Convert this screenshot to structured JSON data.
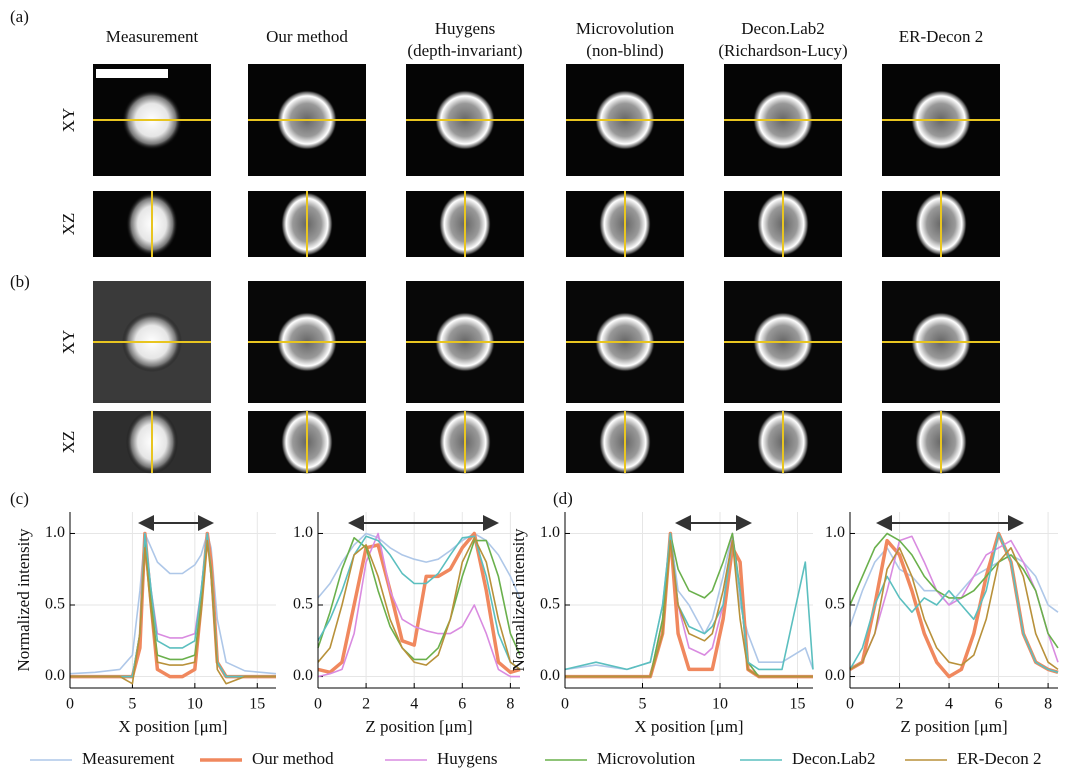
{
  "figure": {
    "panels": [
      "(a)",
      "(b)",
      "(c)",
      "(d)"
    ],
    "columns": [
      [
        "Measurement"
      ],
      [
        "Our method"
      ],
      [
        "Huygens",
        "(depth-invariant)"
      ],
      [
        "Microvolution",
        "(non-blind)"
      ],
      [
        "Decon.Lab2",
        "(Richardson-Lucy)"
      ],
      [
        "ER-Decon 2"
      ]
    ],
    "rows": [
      "XY",
      "XZ"
    ]
  },
  "chart_data": [
    {
      "type": "line",
      "xlabel": "X position [μm]",
      "ylabel": "Normalized intensity",
      "x": [
        0,
        2,
        4,
        5,
        5.6,
        6,
        6.5,
        7,
        8,
        9,
        10,
        10.5,
        11,
        11.3,
        11.8,
        12.5,
        14,
        16.5
      ],
      "xlim": [
        0,
        16.5
      ],
      "xticks": [
        0,
        5,
        10,
        15
      ],
      "ylim": [
        -0.08,
        1.15
      ],
      "yticks": [
        {
          "value": 0,
          "label": "0.0"
        },
        {
          "value": 0.5,
          "label": "0.5"
        },
        {
          "value": 1,
          "label": "1.0"
        }
      ],
      "grid": true,
      "series": [
        {
          "name": "Measurement",
          "color": "#aec7e8",
          "linewidth": 1.6,
          "values": [
            0.02,
            0.03,
            0.05,
            0.15,
            0.6,
            1.0,
            0.9,
            0.8,
            0.72,
            0.72,
            0.78,
            0.85,
            1.0,
            0.9,
            0.4,
            0.1,
            0.04,
            0.02
          ]
        },
        {
          "name": "Our method",
          "color": "#f0885e",
          "linewidth": 3.5,
          "values": [
            0,
            0,
            0,
            0,
            0.2,
            1.0,
            0.5,
            0.05,
            0,
            0,
            0.05,
            0.5,
            1.0,
            0.8,
            0.1,
            0,
            0,
            0
          ]
        },
        {
          "name": "Huygens",
          "color": "#d98be0",
          "linewidth": 1.6,
          "values": [
            0,
            0,
            0,
            0,
            0.3,
            1.0,
            0.6,
            0.3,
            0.27,
            0.27,
            0.3,
            0.6,
            1.0,
            0.7,
            0.1,
            0,
            0,
            0
          ]
        },
        {
          "name": "Microvolution",
          "color": "#6ab04c",
          "linewidth": 1.6,
          "values": [
            0,
            0,
            0,
            0,
            0.3,
            0.95,
            0.5,
            0.15,
            0.12,
            0.12,
            0.15,
            0.5,
            0.95,
            0.75,
            0.1,
            0,
            0,
            0
          ]
        },
        {
          "name": "Decon.Lab2",
          "color": "#5bbfbf",
          "linewidth": 1.6,
          "values": [
            0,
            0,
            0,
            0,
            0.3,
            1.0,
            0.6,
            0.25,
            0.2,
            0.2,
            0.25,
            0.6,
            1.0,
            0.7,
            0.1,
            0,
            0,
            0
          ]
        },
        {
          "name": "ER-Decon 2",
          "color": "#b8913a",
          "linewidth": 1.6,
          "values": [
            0,
            0,
            0,
            -0.05,
            0.3,
            0.9,
            0.45,
            0.1,
            0.08,
            0.08,
            0.1,
            0.45,
            0.95,
            0.7,
            0.05,
            -0.05,
            0,
            0
          ]
        }
      ]
    },
    {
      "type": "line",
      "xlabel": "Z position [μm]",
      "x": [
        0,
        0.5,
        1,
        1.5,
        2,
        2.5,
        3,
        3.5,
        4,
        4.5,
        5,
        5.5,
        6,
        6.5,
        7,
        7.5,
        8,
        8.4
      ],
      "xlim": [
        0,
        8.4
      ],
      "xticks": [
        0,
        2,
        4,
        6,
        8
      ],
      "ylim": [
        -0.08,
        1.15
      ],
      "yticks": [
        {
          "value": 0,
          "label": "0.0"
        },
        {
          "value": 0.5,
          "label": "0.5"
        },
        {
          "value": 1,
          "label": "1.0"
        }
      ],
      "grid": true,
      "series": [
        {
          "name": "Measurement",
          "color": "#aec7e8",
          "linewidth": 1.6,
          "values": [
            0.55,
            0.65,
            0.8,
            0.92,
            1.0,
            0.97,
            0.9,
            0.85,
            0.82,
            0.8,
            0.82,
            0.88,
            0.95,
            1.0,
            0.95,
            0.85,
            0.7,
            0.55
          ]
        },
        {
          "name": "Our method",
          "color": "#f0885e",
          "linewidth": 3.5,
          "values": [
            0.05,
            0.03,
            0.1,
            0.5,
            0.9,
            0.92,
            0.6,
            0.25,
            0.22,
            0.7,
            0.7,
            0.75,
            0.9,
            1.0,
            0.6,
            0.1,
            0.03,
            0.05
          ]
        },
        {
          "name": "Huygens",
          "color": "#d98be0",
          "linewidth": 1.6,
          "values": [
            0,
            0.02,
            0.05,
            0.3,
            0.8,
            1.0,
            0.6,
            0.4,
            0.35,
            0.32,
            0.3,
            0.3,
            0.35,
            0.5,
            0.3,
            0.05,
            0,
            0
          ]
        },
        {
          "name": "Microvolution",
          "color": "#6ab04c",
          "linewidth": 1.6,
          "values": [
            0.2,
            0.45,
            0.75,
            0.97,
            0.9,
            0.6,
            0.35,
            0.2,
            0.12,
            0.12,
            0.2,
            0.4,
            0.7,
            0.95,
            0.95,
            0.7,
            0.3,
            0.15
          ]
        },
        {
          "name": "Decon.Lab2",
          "color": "#5bbfbf",
          "linewidth": 1.6,
          "values": [
            0.25,
            0.4,
            0.6,
            0.85,
            0.98,
            0.95,
            0.85,
            0.72,
            0.65,
            0.65,
            0.72,
            0.85,
            0.97,
            0.98,
            0.7,
            0.3,
            0.1,
            0.05
          ]
        },
        {
          "name": "ER-Decon 2",
          "color": "#b8913a",
          "linewidth": 1.6,
          "values": [
            0.1,
            0.2,
            0.5,
            0.85,
            0.92,
            0.7,
            0.4,
            0.2,
            0.1,
            0.08,
            0.15,
            0.4,
            0.8,
            0.97,
            0.8,
            0.4,
            0.1,
            0.05
          ]
        }
      ]
    },
    {
      "type": "line",
      "xlabel": "X position [μm]",
      "ylabel": "Normalized intensity",
      "x": [
        0,
        2,
        4,
        5.5,
        6.3,
        6.8,
        7.3,
        8,
        9,
        9.5,
        10.2,
        10.8,
        11.3,
        11.8,
        12.5,
        14,
        15.5,
        16
      ],
      "xlim": [
        0,
        16
      ],
      "xticks": [
        0,
        5,
        10,
        15
      ],
      "ylim": [
        -0.08,
        1.15
      ],
      "yticks": [
        {
          "value": 0,
          "label": "0.0"
        },
        {
          "value": 0.5,
          "label": "0.5"
        },
        {
          "value": 1,
          "label": "1.0"
        }
      ],
      "grid": true,
      "series": [
        {
          "name": "Measurement",
          "color": "#aec7e8",
          "linewidth": 1.6,
          "values": [
            0.05,
            0.08,
            0.05,
            0.1,
            0.5,
            1.0,
            0.6,
            0.5,
            0.3,
            0.4,
            0.7,
            1.0,
            0.5,
            0.3,
            0.1,
            0.1,
            0.2,
            0.05
          ]
        },
        {
          "name": "Our method",
          "color": "#f0885e",
          "linewidth": 3.5,
          "values": [
            0,
            0,
            0,
            0,
            0.3,
            1.0,
            0.3,
            0.05,
            0.05,
            0.05,
            0.4,
            0.9,
            0.8,
            0.05,
            0,
            0,
            0,
            0
          ]
        },
        {
          "name": "Huygens",
          "color": "#d98be0",
          "linewidth": 1.6,
          "values": [
            0,
            0,
            0,
            0,
            0.4,
            1.0,
            0.5,
            0.2,
            0.15,
            0.2,
            0.5,
            1.0,
            0.6,
            0.1,
            0,
            0,
            0,
            0
          ]
        },
        {
          "name": "Microvolution",
          "color": "#6ab04c",
          "linewidth": 1.6,
          "values": [
            0,
            0,
            0,
            0,
            0.4,
            1.0,
            0.75,
            0.6,
            0.55,
            0.6,
            0.8,
            1.0,
            0.6,
            0.1,
            0,
            0,
            0,
            0
          ]
        },
        {
          "name": "Decon.Lab2",
          "color": "#5bbfbf",
          "linewidth": 1.6,
          "values": [
            0.05,
            0.1,
            0.05,
            0.1,
            0.5,
            1.0,
            0.5,
            0.35,
            0.3,
            0.35,
            0.5,
            0.95,
            0.6,
            0.1,
            0.05,
            0.05,
            0.8,
            0.05
          ]
        },
        {
          "name": "ER-Decon 2",
          "color": "#b8913a",
          "linewidth": 1.6,
          "values": [
            0,
            0,
            0,
            0,
            0.3,
            0.95,
            0.5,
            0.3,
            0.25,
            0.3,
            0.6,
            0.95,
            0.4,
            0.05,
            0,
            0,
            0,
            0
          ]
        }
      ]
    },
    {
      "type": "line",
      "xlabel": "Z position [μm]",
      "x": [
        0,
        0.5,
        1,
        1.5,
        2,
        2.5,
        3,
        3.5,
        4,
        4.5,
        5,
        5.5,
        6,
        6.5,
        7,
        7.5,
        8,
        8.4
      ],
      "xlim": [
        0,
        8.4
      ],
      "xticks": [
        0,
        2,
        4,
        6,
        8
      ],
      "ylim": [
        -0.08,
        1.15
      ],
      "yticks": [
        {
          "value": 0,
          "label": "0.0"
        },
        {
          "value": 0.5,
          "label": "0.5"
        },
        {
          "value": 1,
          "label": "1.0"
        }
      ],
      "grid": true,
      "series": [
        {
          "name": "Measurement",
          "color": "#aec7e8",
          "linewidth": 1.6,
          "values": [
            0.35,
            0.6,
            0.8,
            0.9,
            0.75,
            0.7,
            0.6,
            0.6,
            0.5,
            0.6,
            0.7,
            0.75,
            0.8,
            0.85,
            0.8,
            0.7,
            0.5,
            0.45
          ]
        },
        {
          "name": "Our method",
          "color": "#f0885e",
          "linewidth": 3.5,
          "values": [
            0.05,
            0.1,
            0.5,
            0.95,
            0.85,
            0.6,
            0.3,
            0.1,
            0,
            0.05,
            0.3,
            0.7,
            1.0,
            0.8,
            0.3,
            0.1,
            0.05,
            0.03
          ]
        },
        {
          "name": "Huygens",
          "color": "#d98be0",
          "linewidth": 1.6,
          "values": [
            0.05,
            0.1,
            0.3,
            0.6,
            0.95,
            0.98,
            0.8,
            0.6,
            0.5,
            0.55,
            0.7,
            0.85,
            0.9,
            0.95,
            0.8,
            0.6,
            0.3,
            0.1
          ]
        },
        {
          "name": "Microvolution",
          "color": "#6ab04c",
          "linewidth": 1.6,
          "values": [
            0.5,
            0.7,
            0.9,
            1.0,
            0.95,
            0.85,
            0.7,
            0.6,
            0.55,
            0.55,
            0.6,
            0.7,
            0.8,
            0.85,
            0.75,
            0.6,
            0.3,
            0.2
          ]
        },
        {
          "name": "Decon.Lab2",
          "color": "#5bbfbf",
          "linewidth": 1.6,
          "values": [
            0.05,
            0.2,
            0.5,
            0.7,
            0.55,
            0.45,
            0.55,
            0.5,
            0.6,
            0.5,
            0.4,
            0.6,
            1.0,
            0.8,
            0.3,
            0.1,
            0.05,
            0.03
          ]
        },
        {
          "name": "ER-Decon 2",
          "color": "#b8913a",
          "linewidth": 1.6,
          "values": [
            0.05,
            0.1,
            0.3,
            0.75,
            0.9,
            0.7,
            0.4,
            0.2,
            0.1,
            0.08,
            0.15,
            0.4,
            0.8,
            0.9,
            0.7,
            0.3,
            0.1,
            0.05
          ]
        }
      ]
    }
  ]
}
